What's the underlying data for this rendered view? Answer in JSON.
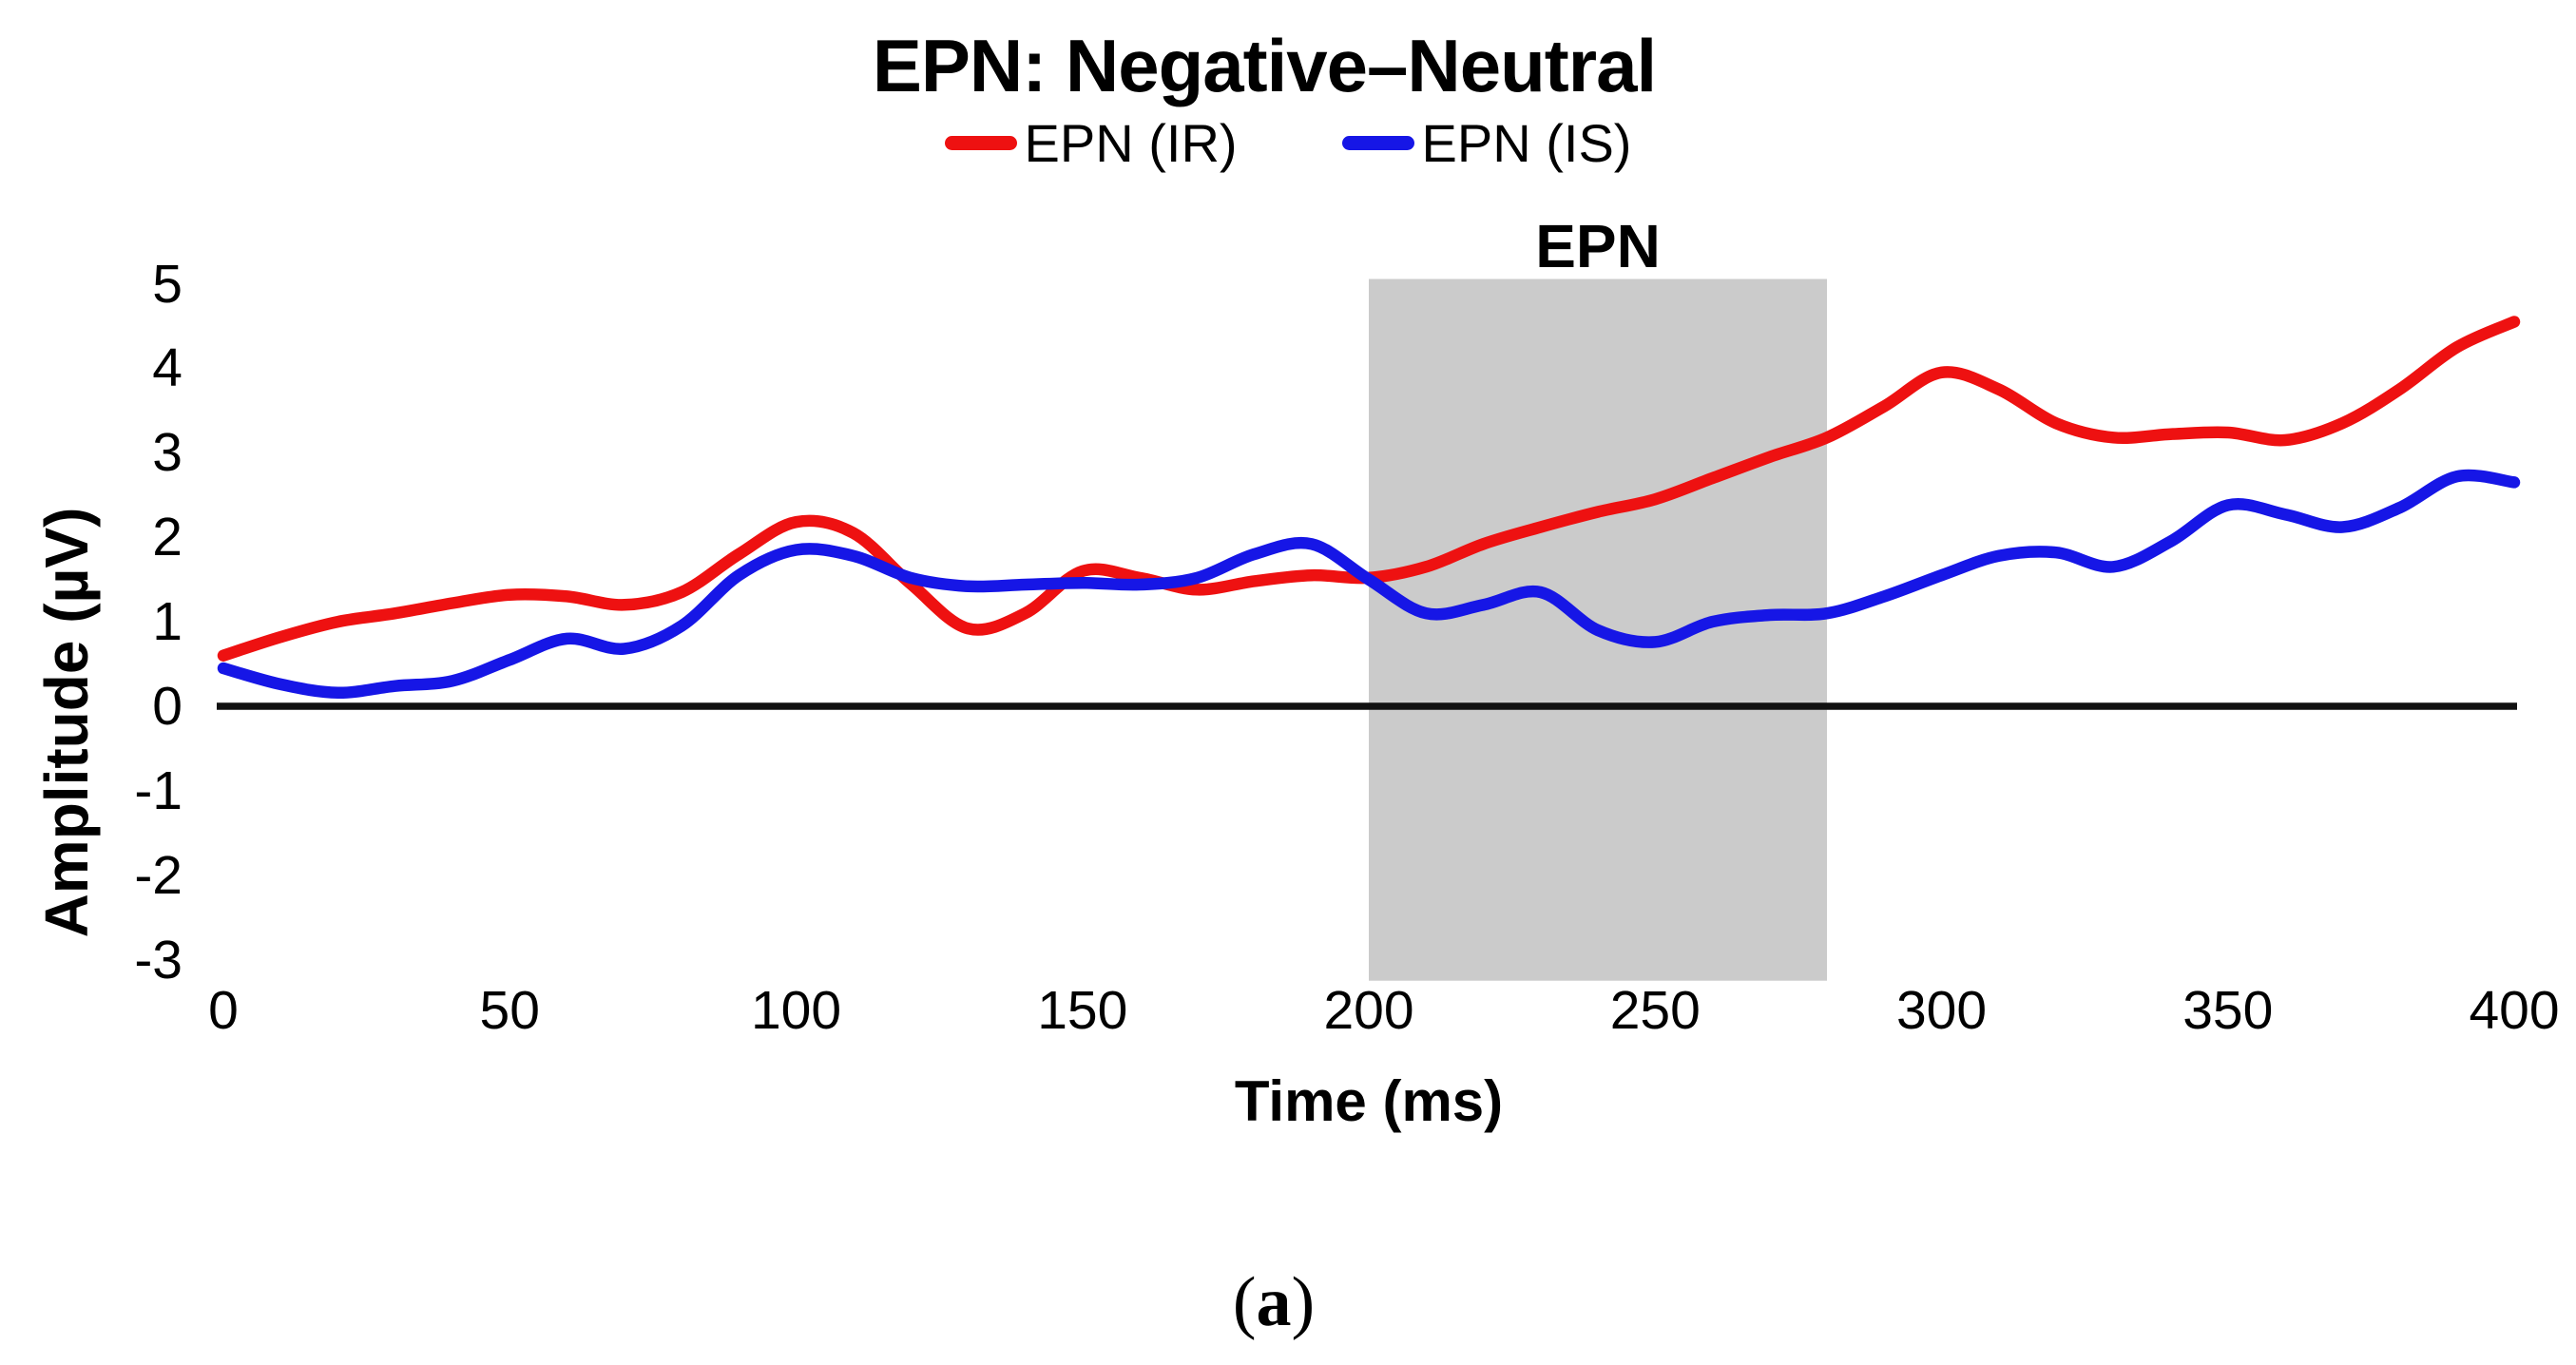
{
  "figure": {
    "panel_open": "(",
    "panel_letter": "a",
    "panel_close": ")"
  },
  "chart_data": {
    "type": "line",
    "title": "EPN: Negative–Neutral",
    "xlabel": "Time (ms)",
    "ylabel": "Amplitude (µV)",
    "xlim": [
      0,
      400
    ],
    "ylim": [
      -3,
      5
    ],
    "x_ticks": [
      0,
      50,
      100,
      150,
      200,
      250,
      300,
      350,
      400
    ],
    "y_ticks": [
      5,
      4,
      3,
      2,
      1,
      0,
      -1,
      -2,
      -3
    ],
    "grid": false,
    "legend_position": "top-center",
    "background": "#ffffff",
    "zero_line": {
      "value": 0,
      "color": "#111111"
    },
    "highlight_band": {
      "label": "EPN",
      "x_start": 200,
      "x_end": 280,
      "color": "#cbcbcb"
    },
    "x": [
      0,
      10,
      20,
      30,
      40,
      50,
      60,
      70,
      80,
      90,
      100,
      110,
      120,
      130,
      140,
      150,
      160,
      170,
      180,
      190,
      200,
      210,
      220,
      230,
      240,
      250,
      260,
      270,
      280,
      290,
      300,
      310,
      320,
      330,
      340,
      350,
      360,
      370,
      380,
      390,
      400
    ],
    "series": [
      {
        "name": "EPN (IR)",
        "color": "#ee1111",
        "values": [
          0.6,
          0.82,
          1.0,
          1.1,
          1.22,
          1.32,
          1.3,
          1.2,
          1.35,
          1.8,
          2.18,
          2.05,
          1.45,
          0.92,
          1.1,
          1.6,
          1.52,
          1.38,
          1.48,
          1.55,
          1.52,
          1.65,
          1.92,
          2.12,
          2.3,
          2.45,
          2.7,
          2.95,
          3.18,
          3.55,
          3.95,
          3.75,
          3.35,
          3.18,
          3.22,
          3.24,
          3.15,
          3.35,
          3.75,
          4.25,
          4.55
        ]
      },
      {
        "name": "EPN (IS)",
        "color": "#1616e6",
        "values": [
          0.45,
          0.26,
          0.16,
          0.24,
          0.3,
          0.55,
          0.8,
          0.68,
          0.95,
          1.55,
          1.85,
          1.78,
          1.52,
          1.42,
          1.44,
          1.46,
          1.44,
          1.52,
          1.8,
          1.92,
          1.5,
          1.1,
          1.2,
          1.35,
          0.9,
          0.76,
          1.0,
          1.08,
          1.1,
          1.3,
          1.55,
          1.78,
          1.82,
          1.65,
          1.95,
          2.38,
          2.27,
          2.12,
          2.35,
          2.72,
          2.65
        ]
      }
    ]
  }
}
